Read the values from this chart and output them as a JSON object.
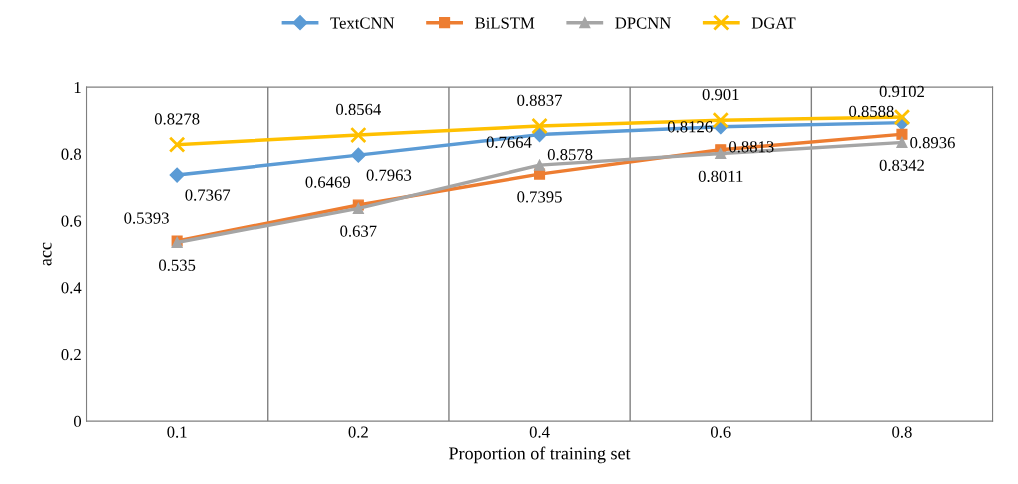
{
  "chart_data": {
    "type": "line",
    "xlabel": "Proportion of training set",
    "ylabel": "acc",
    "categories": [
      "0.1",
      "0.2",
      "0.4",
      "0.6",
      "0.8"
    ],
    "ylim": [
      0,
      1
    ],
    "yticks": [
      0,
      0.2,
      0.4,
      0.6,
      0.8,
      1
    ],
    "grid": "x",
    "legend": "top",
    "data_labels": true,
    "series": [
      {
        "name": "TextCNN",
        "color": "#5b9bd5",
        "marker": "diamond",
        "values": [
          0.7367,
          0.7963,
          0.8578,
          0.8813,
          0.8936
        ]
      },
      {
        "name": "BiLSTM",
        "color": "#ed7d31",
        "marker": "square",
        "values": [
          0.5393,
          0.6469,
          0.7395,
          0.8126,
          0.8588
        ]
      },
      {
        "name": "DPCNN",
        "color": "#a5a5a5",
        "marker": "triangle",
        "values": [
          0.535,
          0.637,
          0.7664,
          0.8011,
          0.8342
        ]
      },
      {
        "name": "DGAT",
        "color": "#ffc000",
        "marker": "cross",
        "values": [
          0.8278,
          0.8564,
          0.8837,
          0.901,
          0.9102
        ]
      }
    ]
  }
}
